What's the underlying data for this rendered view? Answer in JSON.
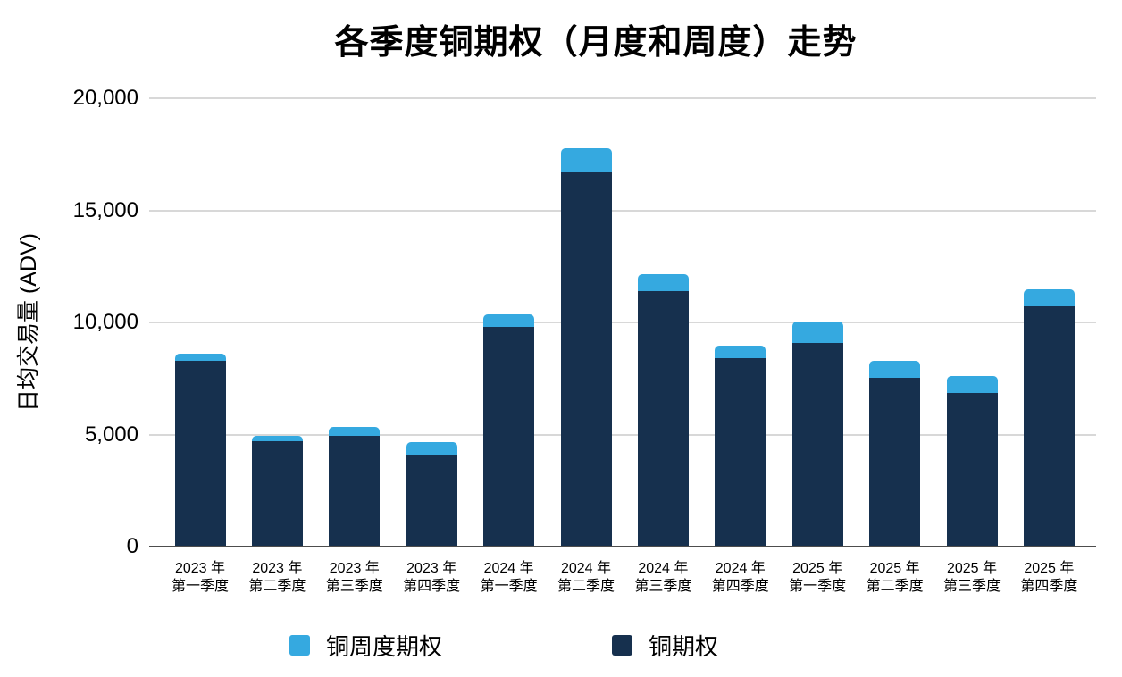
{
  "title": "各季度铜期权（月度和周度）走势",
  "chart_data": {
    "type": "bar",
    "stacked": true,
    "title": "各季度铜期权（月度和周度）走势",
    "xlabel": "",
    "ylabel": "日均交易量 (ADV)",
    "ylim": [
      0,
      20000
    ],
    "yticks": [
      0,
      5000,
      10000,
      15000,
      20000
    ],
    "ytick_labels": [
      "0",
      "5,000",
      "10,000",
      "15,000",
      "20,000"
    ],
    "grid": true,
    "categories": [
      {
        "year": "2023 年",
        "quarter": "第一季度"
      },
      {
        "year": "2023 年",
        "quarter": "第二季度"
      },
      {
        "year": "2023 年",
        "quarter": "第三季度"
      },
      {
        "year": "2023 年",
        "quarter": "第四季度"
      },
      {
        "year": "2024 年",
        "quarter": "第一季度"
      },
      {
        "year": "2024 年",
        "quarter": "第二季度"
      },
      {
        "year": "2024 年",
        "quarter": "第三季度"
      },
      {
        "year": "2024 年",
        "quarter": "第四季度"
      },
      {
        "year": "2025 年",
        "quarter": "第一季度"
      },
      {
        "year": "2025 年",
        "quarter": "第二季度"
      },
      {
        "year": "2025 年",
        "quarter": "第三季度"
      },
      {
        "year": "2025 年",
        "quarter": "第四季度"
      }
    ],
    "series": [
      {
        "name": "铜期权",
        "color": "#16304E",
        "values": [
          8300,
          4700,
          4950,
          4100,
          9800,
          16700,
          11400,
          8400,
          9100,
          7550,
          6850,
          10700
        ]
      },
      {
        "name": "铜周度期权",
        "color": "#35A9E0",
        "values": [
          300,
          230,
          390,
          550,
          570,
          1080,
          750,
          580,
          930,
          750,
          750,
          760
        ]
      }
    ],
    "legend": {
      "position": "bottom",
      "entries": [
        {
          "label": "铜周度期权",
          "color": "#35A9E0"
        },
        {
          "label": "铜期权",
          "color": "#16304E"
        }
      ]
    },
    "colors": {
      "gridline": "#d8d8d8",
      "axis_line": "#4d4d4d",
      "text": "#000000"
    }
  }
}
